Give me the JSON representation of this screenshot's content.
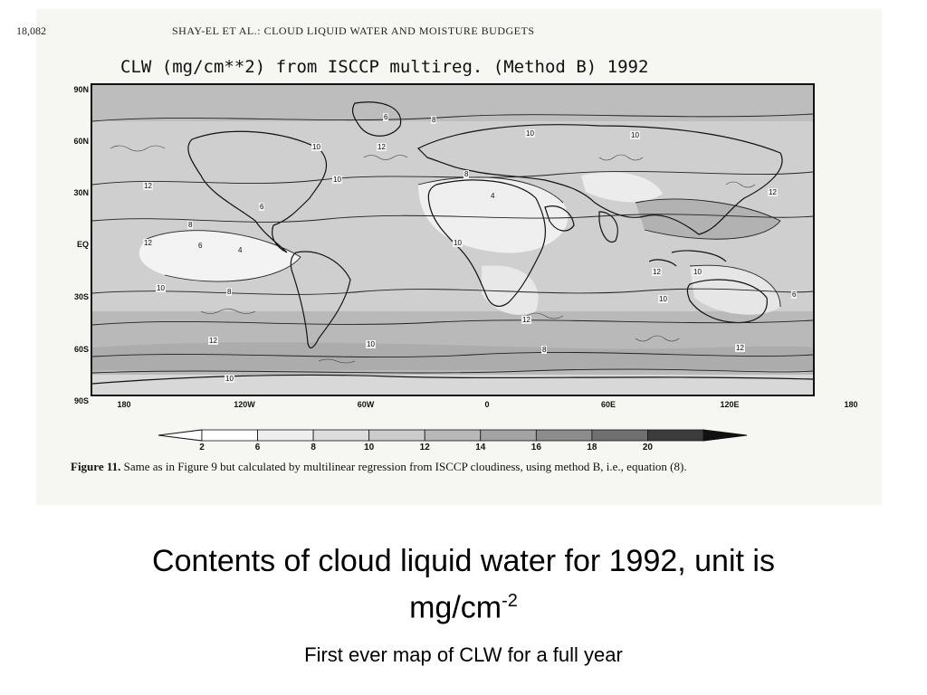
{
  "journal": {
    "page_number": "18,082",
    "header": "SHAY-EL ET AL.: CLOUD LIQUID WATER AND MOISTURE BUDGETS"
  },
  "map": {
    "title": "CLW (mg/cm**2) from ISCCP multireg. (Method B) 1992",
    "lat_labels": [
      "90N",
      "60N",
      "30N",
      "EQ",
      "30S",
      "60S",
      "90S"
    ],
    "lon_labels": [
      "180",
      "120W",
      "60W",
      "0",
      "60E",
      "120E",
      "180"
    ],
    "contour_labels": [
      "6",
      "8",
      "10",
      "12",
      "10",
      "8",
      "10",
      "12",
      "4",
      "6",
      "8",
      "10",
      "12",
      "10",
      "12",
      "12",
      "10",
      "6",
      "4",
      "10",
      "8",
      "12",
      "10",
      "12",
      "10",
      "6",
      "8",
      "12",
      "10"
    ],
    "colors": {
      "low": "#f2f2f2",
      "mid": "#c8c8c8",
      "high": "#a8a8a8",
      "line": "#111111"
    }
  },
  "colorbar": {
    "ticks": [
      "2",
      "6",
      "8",
      "10",
      "12",
      "14",
      "16",
      "18",
      "20"
    ],
    "shades": [
      "#ffffff",
      "#eeeeee",
      "#dddddd",
      "#cccccc",
      "#b8b8b8",
      "#a4a4a4",
      "#8c8c8c",
      "#707070",
      "#3c3c3c"
    ]
  },
  "caption": {
    "label": "Figure 11.",
    "text": "Same as in Figure 9 but calculated by multilinear regression from ISCCP cloudiness, using method B, i.e., equation (8)."
  },
  "slide": {
    "title": "Contents of cloud liquid water for 1992, unit is mg/cm",
    "title_superscript": "-2",
    "subtitle": "First ever map of CLW for a full year"
  }
}
